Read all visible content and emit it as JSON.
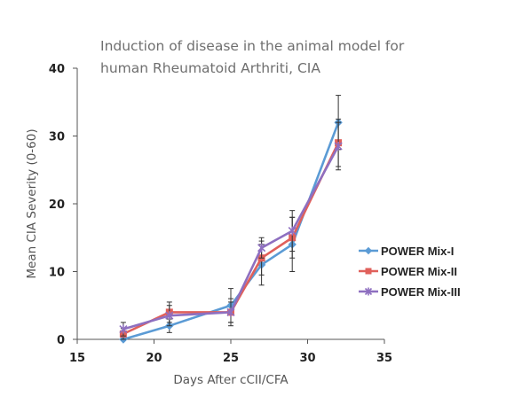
{
  "chart_data": {
    "type": "line",
    "title_lines": [
      "Induction of disease in the animal model for",
      "human Rheumatoid Arthriti, CIA"
    ],
    "xlabel": "Days After cCII/CFA",
    "ylabel": "Mean CIA Severity (0-60)",
    "xlim": [
      15,
      35
    ],
    "ylim": [
      0,
      40
    ],
    "xticks": [
      15,
      20,
      25,
      30,
      35
    ],
    "yticks": [
      0,
      10,
      20,
      30,
      40
    ],
    "grid": false,
    "legend_position": "right",
    "series": [
      {
        "name": "POWER Mix-I",
        "color": "#5b9bd5",
        "marker": "diamond",
        "x": [
          18,
          21,
          25,
          27,
          29,
          32
        ],
        "y": [
          0,
          2,
          5,
          11,
          14,
          32
        ],
        "err": [
          0.5,
          1,
          2.5,
          3,
          4,
          4
        ]
      },
      {
        "name": "POWER Mix-II",
        "color": "#e0605b",
        "marker": "square",
        "x": [
          18,
          21,
          25,
          27,
          29,
          32
        ],
        "y": [
          0.8,
          4,
          4,
          12,
          15,
          29
        ],
        "err": [
          0.8,
          1.5,
          2,
          2.5,
          3,
          3.5
        ]
      },
      {
        "name": "POWER Mix-III",
        "color": "#8e6fc0",
        "marker": "star",
        "x": [
          18,
          21,
          25,
          27,
          29,
          32
        ],
        "y": [
          1.5,
          3.5,
          4,
          13.5,
          16,
          28.5
        ],
        "err": [
          1,
          1.5,
          1.5,
          1.5,
          3,
          3.5
        ]
      }
    ]
  }
}
